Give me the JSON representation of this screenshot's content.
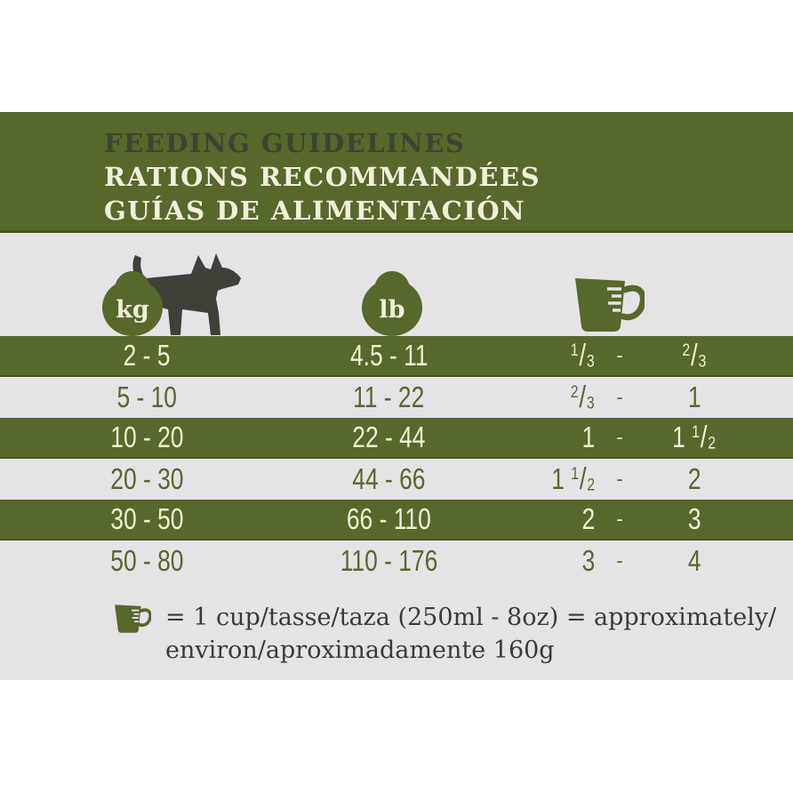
{
  "header": {
    "title_en": "FEEDING GUIDELINES",
    "title_fr": "RATIONS RECOMMANDÉES",
    "title_es": "GUÍAS DE ALIMENTACIÓN"
  },
  "table": {
    "kg_label": "kg",
    "lb_label": "lb"
  },
  "chart_data": {
    "type": "table",
    "title": "FEEDING GUIDELINES",
    "columns": [
      "weight-kg",
      "weight-lb",
      "cups-per-day"
    ],
    "range_separator": "-",
    "rows": [
      {
        "kg": "2 - 5",
        "lb": "4.5 - 11",
        "cups_min": "1/3",
        "cups_max": "2/3"
      },
      {
        "kg": "5 - 10",
        "lb": "11 - 22",
        "cups_min": "2/3",
        "cups_max": "1"
      },
      {
        "kg": "10 - 20",
        "lb": "22 - 44",
        "cups_min": "1",
        "cups_max": "1 1/2"
      },
      {
        "kg": "20 - 30",
        "lb": "44 - 66",
        "cups_min": "1 1/2",
        "cups_max": "2"
      },
      {
        "kg": "30 - 50",
        "lb": "66 - 110",
        "cups_min": "2",
        "cups_max": "3"
      },
      {
        "kg": "50 - 80",
        "lb": "110 - 176",
        "cups_min": "3",
        "cups_max": "4"
      }
    ]
  },
  "footnote": {
    "line1": "= 1 cup/tasse/taza (250ml - 8oz) = approximately/",
    "line2": "environ/aproximadamente 160g"
  },
  "colors": {
    "olive": "#57682b",
    "cream": "#eef0d8",
    "gray_background": "#e4e4e7",
    "charcoal": "#3e4138"
  }
}
